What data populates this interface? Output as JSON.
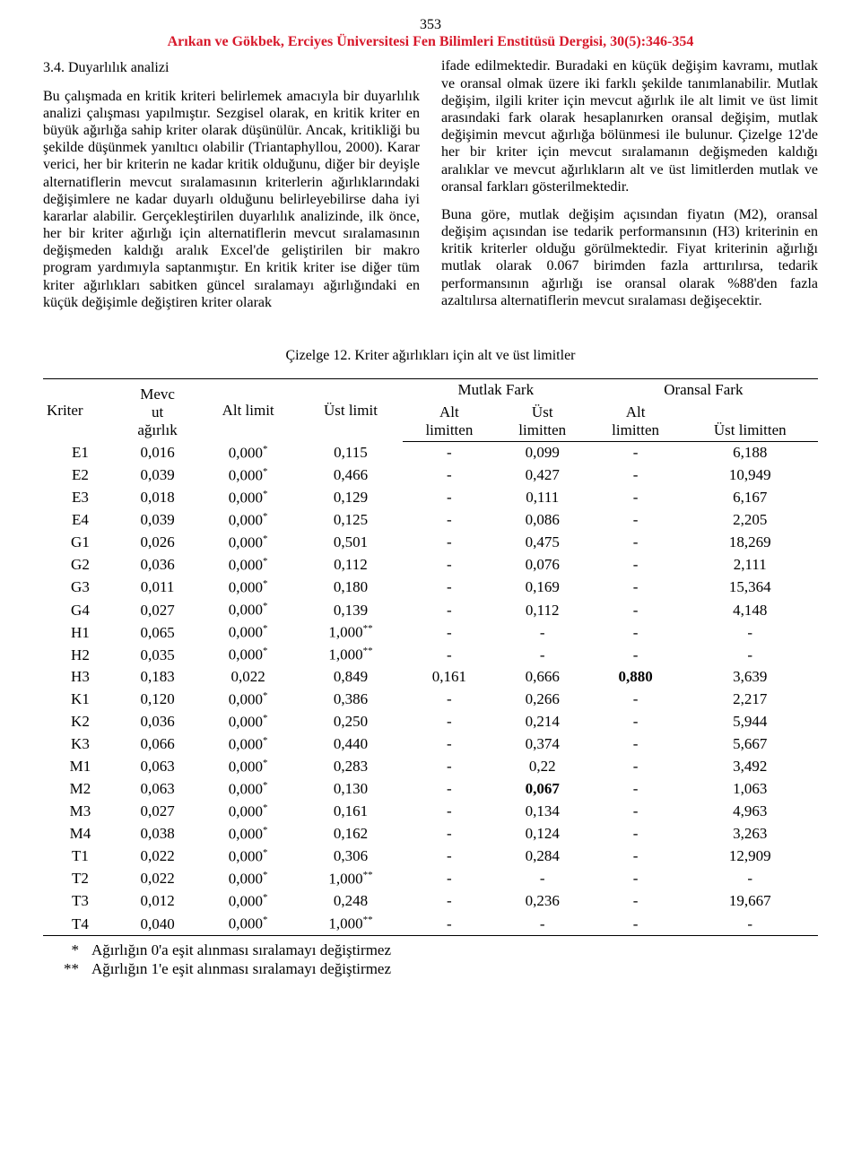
{
  "page_number": "353",
  "citation": "Arıkan ve Gökbek,  Erciyes Üniversitesi Fen Bilimleri Enstitüsü Dergisi, 30(5):346-354",
  "section_heading": "3.4. Duyarlılık analizi",
  "left_para": "Bu çalışmada en kritik kriteri belirlemek amacıyla bir duyarlılık analizi çalışması yapılmıştır. Sezgisel olarak, en kritik kriter en büyük ağırlığa sahip kriter olarak düşünülür. Ancak, kritikliği bu şekilde düşünmek yanıltıcı olabilir (Triantaphyllou, 2000). Karar verici, her bir kriterin ne kadar kritik olduğunu, diğer bir deyişle alternatiflerin mevcut sıralamasının kriterlerin ağırlıklarındaki değişimlere ne kadar duyarlı olduğunu belirleyebilirse daha iyi kararlar alabilir. Gerçekleştirilen duyarlılık analizinde, ilk önce, her bir kriter ağırlığı için alternatiflerin mevcut sıralamasının değişmeden kaldığı aralık Excel'de geliştirilen bir makro program yardımıyla saptanmıştır. En kritik kriter ise diğer tüm kriter ağırlıkları sabitken güncel sıralamayı ağırlığındaki en küçük değişimle değiştiren kriter olarak",
  "right_para": "ifade edilmektedir. Buradaki en küçük değişim kavramı, mutlak ve oransal olmak üzere iki farklı şekilde tanımlanabilir. Mutlak değişim, ilgili kriter için mevcut ağırlık ile alt limit ve üst limit arasındaki fark olarak hesaplanırken oransal değişim, mutlak değişimin mevcut ağırlığa bölünmesi ile bulunur. Çizelge 12'de her bir kriter için mevcut sıralamanın değişmeden kaldığı aralıklar ve mevcut ağırlıkların alt ve üst limitlerden mutlak ve oransal farkları gösterilmektedir.",
  "right_para2": "Buna göre, mutlak değişim açısından fiyatın (M2), oransal değişim açısından ise tedarik performansının (H3) kriterinin en kritik kriterler olduğu görülmektedir. Fiyat kriterinin ağırlığı mutlak olarak 0.067 birimden fazla arttırılırsa, tedarik performansının ağırlığı ise oransal olarak %88'den fazla azaltılırsa alternatiflerin mevcut sıralaması değişecektir.",
  "table_caption": "Çizelge 12. Kriter ağırlıkları için alt ve üst limitler",
  "headers": {
    "kriter": "Kriter",
    "mevcut": "Mevc\nut\nağırlık",
    "alt_limit": "Alt limit",
    "ust_limit": "Üst limit",
    "mutlak": "Mutlak Fark",
    "oransal": "Oransal Fark",
    "alt_limitten": "Alt\nlimitten",
    "ust_limitten": "Üst\nlimitten",
    "ust_limitten2": "Üst limitten"
  },
  "rows": [
    {
      "k": "E1",
      "m": "0,016",
      "al": "0,000",
      "als": "*",
      "ul": "0,115",
      "ma": "-",
      "mu": "0,099",
      "oa": "-",
      "ou": "6,188"
    },
    {
      "k": "E2",
      "m": "0,039",
      "al": "0,000",
      "als": "*",
      "ul": "0,466",
      "ma": "-",
      "mu": "0,427",
      "oa": "-",
      "ou": "10,949"
    },
    {
      "k": "E3",
      "m": "0,018",
      "al": "0,000",
      "als": "*",
      "ul": "0,129",
      "ma": "-",
      "mu": "0,111",
      "oa": "-",
      "ou": "6,167"
    },
    {
      "k": "E4",
      "m": "0,039",
      "al": "0,000",
      "als": "*",
      "ul": "0,125",
      "ma": "-",
      "mu": "0,086",
      "oa": "-",
      "ou": "2,205"
    },
    {
      "k": "G1",
      "m": "0,026",
      "al": "0,000",
      "als": "*",
      "ul": "0,501",
      "ma": "-",
      "mu": "0,475",
      "oa": "-",
      "ou": "18,269"
    },
    {
      "k": "G2",
      "m": "0,036",
      "al": "0,000",
      "als": "*",
      "ul": "0,112",
      "ma": "-",
      "mu": "0,076",
      "oa": "-",
      "ou": "2,111"
    },
    {
      "k": "G3",
      "m": "0,011",
      "al": "0,000",
      "als": "*",
      "ul": "0,180",
      "ma": "-",
      "mu": "0,169",
      "oa": "-",
      "ou": "15,364"
    },
    {
      "k": "G4",
      "m": "0,027",
      "al": "0,000",
      "als": "*",
      "ul": "0,139",
      "ma": "-",
      "mu": "0,112",
      "oa": "-",
      "ou": "4,148"
    },
    {
      "k": "H1",
      "m": "0,065",
      "al": "0,000",
      "als": "*",
      "ul": "1,000",
      "uls": "**",
      "ma": "-",
      "mu": "-",
      "oa": "-",
      "ou": "-"
    },
    {
      "k": "H2",
      "m": "0,035",
      "al": "0,000",
      "als": "*",
      "ul": "1,000",
      "uls": "**",
      "ma": "-",
      "mu": "-",
      "oa": "-",
      "ou": "-"
    },
    {
      "k": "H3",
      "m": "0,183",
      "al": "0,022",
      "ul": "0,849",
      "ma": "0,161",
      "mu": "0,666",
      "oa": "0,880",
      "oa_bold": true,
      "ou": "3,639"
    },
    {
      "k": "K1",
      "m": "0,120",
      "al": "0,000",
      "als": "*",
      "ul": "0,386",
      "ma": "-",
      "mu": "0,266",
      "oa": "-",
      "ou": "2,217"
    },
    {
      "k": "K2",
      "m": "0,036",
      "al": "0,000",
      "als": "*",
      "ul": "0,250",
      "ma": "-",
      "mu": "0,214",
      "oa": "-",
      "ou": "5,944"
    },
    {
      "k": "K3",
      "m": "0,066",
      "al": "0,000",
      "als": "*",
      "ul": "0,440",
      "ma": "-",
      "mu": "0,374",
      "oa": "-",
      "ou": "5,667"
    },
    {
      "k": "M1",
      "m": "0,063",
      "al": "0,000",
      "als": "*",
      "ul": "0,283",
      "ma": "-",
      "mu": "0,22",
      "oa": "-",
      "ou": "3,492"
    },
    {
      "k": "M2",
      "m": "0,063",
      "al": "0,000",
      "als": "*",
      "ul": "0,130",
      "ma": "-",
      "mu": "0,067",
      "mu_bold": true,
      "oa": "-",
      "ou": "1,063"
    },
    {
      "k": "M3",
      "m": "0,027",
      "al": "0,000",
      "als": "*",
      "ul": "0,161",
      "ma": "-",
      "mu": "0,134",
      "oa": "-",
      "ou": "4,963"
    },
    {
      "k": "M4",
      "m": "0,038",
      "al": "0,000",
      "als": "*",
      "ul": "0,162",
      "ma": "-",
      "mu": "0,124",
      "oa": "-",
      "ou": "3,263"
    },
    {
      "k": "T1",
      "m": "0,022",
      "al": "0,000",
      "als": "*",
      "ul": "0,306",
      "ma": "-",
      "mu": "0,284",
      "oa": "-",
      "ou": "12,909"
    },
    {
      "k": "T2",
      "m": "0,022",
      "al": "0,000",
      "als": "*",
      "ul": "1,000",
      "uls": "**",
      "ma": "-",
      "mu": "-",
      "oa": "-",
      "ou": "-"
    },
    {
      "k": "T3",
      "m": "0,012",
      "al": "0,000",
      "als": "*",
      "ul": "0,248",
      "ma": "-",
      "mu": "0,236",
      "oa": "-",
      "ou": "19,667"
    },
    {
      "k": "T4",
      "m": "0,040",
      "al": "0,000",
      "als": "*",
      "ul": "1,000",
      "uls": "**",
      "ma": "-",
      "mu": "-",
      "oa": "-",
      "ou": "-"
    }
  ],
  "footnotes": [
    {
      "mark": "*",
      "text": "Ağırlığın 0'a eşit alınması sıralamayı değiştirmez"
    },
    {
      "mark": "**",
      "text": "Ağırlığın 1'e eşit alınması sıralamayı değiştirmez"
    }
  ]
}
